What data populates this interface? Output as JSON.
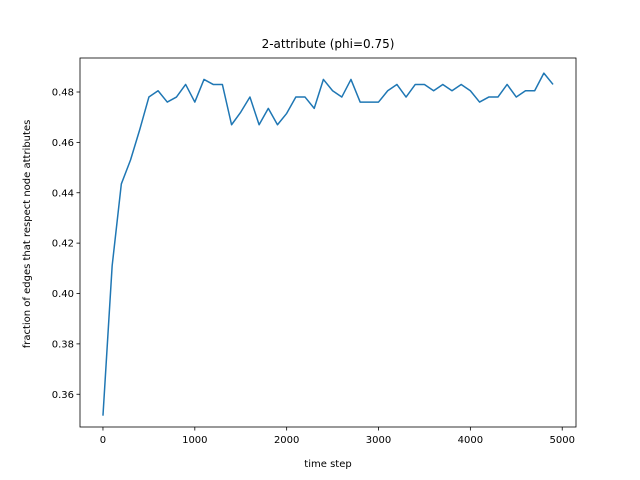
{
  "chart_data": {
    "type": "line",
    "title": "2-attribute (phi=0.75)",
    "xlabel": "time step",
    "ylabel": "fraction of edges that respect node attributes",
    "xlim": [
      -250,
      5150
    ],
    "ylim": [
      0.347,
      0.4935
    ],
    "xticks": [
      0,
      1000,
      2000,
      3000,
      4000,
      5000
    ],
    "yticks": [
      0.36,
      0.38,
      0.4,
      0.42,
      0.44,
      0.46,
      0.48
    ],
    "ytick_labels": [
      "0.36",
      "0.38",
      "0.40",
      "0.42",
      "0.44",
      "0.46",
      "0.48"
    ],
    "grid": false,
    "legend": "none",
    "color": "#1f77b4",
    "series": [
      {
        "x": [
          0,
          100,
          200,
          300,
          400,
          500,
          600,
          700,
          800,
          900,
          1000,
          1100,
          1200,
          1300,
          1400,
          1500,
          1600,
          1700,
          1800,
          1900,
          2000,
          2100,
          2200,
          2300,
          2400,
          2500,
          2600,
          2700,
          2800,
          2900,
          3000,
          3100,
          3200,
          3300,
          3400,
          3500,
          3600,
          3700,
          3800,
          3900,
          4000,
          4100,
          4200,
          4300,
          4400,
          4500,
          4600,
          4700,
          4800,
          4900
        ],
        "values": [
          0.3515,
          0.411,
          0.4435,
          0.453,
          0.465,
          0.478,
          0.4805,
          0.476,
          0.478,
          0.483,
          0.476,
          0.485,
          0.483,
          0.483,
          0.467,
          0.472,
          0.478,
          0.467,
          0.4735,
          0.467,
          0.4715,
          0.478,
          0.478,
          0.4735,
          0.485,
          0.4805,
          0.478,
          0.485,
          0.476,
          0.476,
          0.476,
          0.4805,
          0.483,
          0.478,
          0.483,
          0.483,
          0.4805,
          0.483,
          0.4805,
          0.483,
          0.4805,
          0.476,
          0.478,
          0.478,
          0.483,
          0.478,
          0.4805,
          0.4805,
          0.4875,
          0.483
        ]
      }
    ]
  }
}
